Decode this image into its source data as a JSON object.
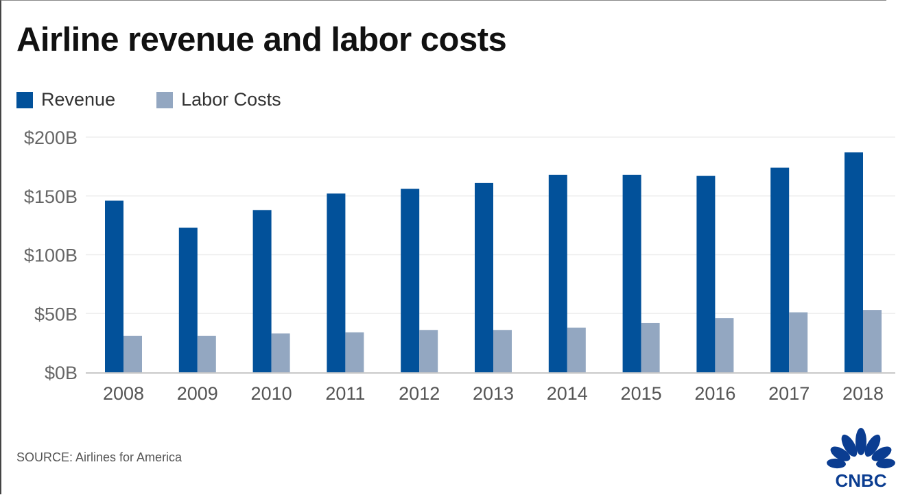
{
  "chart_data": {
    "type": "bar",
    "title": "Airline revenue and labor costs",
    "xlabel": "",
    "ylabel": "",
    "categories": [
      "2008",
      "2009",
      "2010",
      "2011",
      "2012",
      "2013",
      "2014",
      "2015",
      "2016",
      "2017",
      "2018"
    ],
    "series": [
      {
        "name": "Revenue",
        "color": "#02519a",
        "values": [
          146,
          123,
          138,
          152,
          156,
          161,
          168,
          168,
          167,
          174,
          187
        ]
      },
      {
        "name": "Labor Costs",
        "color": "#93a7c1",
        "values": [
          31,
          31,
          33,
          34,
          36,
          36,
          38,
          42,
          46,
          51,
          53
        ]
      }
    ],
    "ylim": [
      0,
      200
    ],
    "yticks": [
      0,
      50,
      100,
      150,
      200
    ],
    "ytick_labels": [
      "$0B",
      "$50B",
      "$100B",
      "$150B",
      "$200B"
    ],
    "grid": true,
    "legend": "top-left"
  },
  "source": "SOURCE: Airlines for America",
  "logo": "CNBC"
}
